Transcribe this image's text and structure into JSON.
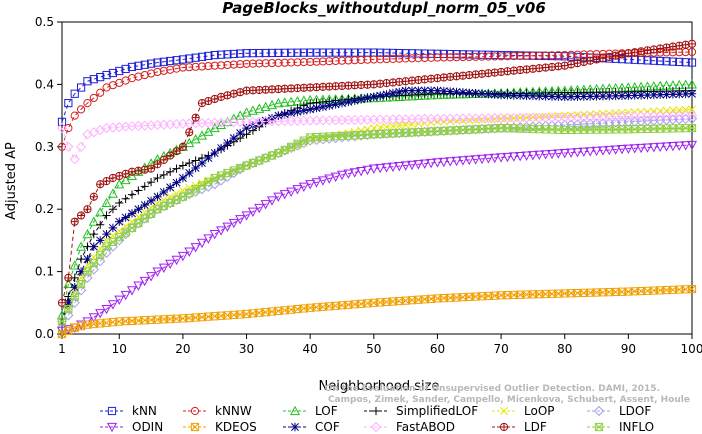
{
  "chart_data": {
    "type": "line",
    "title": "PageBlocks_withoutdupl_norm_05_v06",
    "xlabel": "Neighborhood size",
    "ylabel": "Adjusted AP",
    "xlim": [
      1,
      100
    ],
    "ylim": [
      0,
      0.5
    ],
    "xticks": [
      1,
      10,
      20,
      30,
      40,
      50,
      60,
      70,
      80,
      90,
      100
    ],
    "yticks": [
      0.0,
      0.1,
      0.2,
      0.3,
      0.4,
      0.5
    ],
    "grid": false,
    "legend_position": "bottom",
    "watermark": [
      "Campos, Zimek, Sander, Campello, Micenkova, Schubert, Assent, Houle",
      "On the Evaluation of Unsupervised Outlier Detection. DAMI, 2015."
    ],
    "series": [
      {
        "name": "kNN",
        "color": "#1f1fd6",
        "marker": "square",
        "dash": "4,3",
        "points": [
          [
            1,
            0.34
          ],
          [
            2,
            0.37
          ],
          [
            3,
            0.385
          ],
          [
            5,
            0.405
          ],
          [
            8,
            0.415
          ],
          [
            12,
            0.428
          ],
          [
            16,
            0.435
          ],
          [
            20,
            0.44
          ],
          [
            25,
            0.447
          ],
          [
            30,
            0.45
          ],
          [
            40,
            0.451
          ],
          [
            50,
            0.451
          ],
          [
            60,
            0.449
          ],
          [
            70,
            0.447
          ],
          [
            80,
            0.445
          ],
          [
            90,
            0.44
          ],
          [
            100,
            0.435
          ]
        ]
      },
      {
        "name": "kNNW",
        "color": "#d62020",
        "marker": "circle",
        "dash": "4,3",
        "points": [
          [
            1,
            0.3
          ],
          [
            2,
            0.33
          ],
          [
            3,
            0.35
          ],
          [
            5,
            0.37
          ],
          [
            8,
            0.395
          ],
          [
            12,
            0.41
          ],
          [
            16,
            0.42
          ],
          [
            20,
            0.427
          ],
          [
            25,
            0.43
          ],
          [
            30,
            0.433
          ],
          [
            40,
            0.436
          ],
          [
            50,
            0.44
          ],
          [
            60,
            0.443
          ],
          [
            70,
            0.445
          ],
          [
            80,
            0.447
          ],
          [
            90,
            0.45
          ],
          [
            100,
            0.452
          ]
        ]
      },
      {
        "name": "LOF",
        "color": "#22c022",
        "marker": "triangle",
        "dash": "4,3",
        "points": [
          [
            1,
            0.03
          ],
          [
            2,
            0.08
          ],
          [
            4,
            0.14
          ],
          [
            6,
            0.18
          ],
          [
            8,
            0.21
          ],
          [
            10,
            0.24
          ],
          [
            13,
            0.26
          ],
          [
            16,
            0.28
          ],
          [
            20,
            0.3
          ],
          [
            25,
            0.33
          ],
          [
            30,
            0.355
          ],
          [
            35,
            0.37
          ],
          [
            40,
            0.375
          ],
          [
            50,
            0.378
          ],
          [
            60,
            0.383
          ],
          [
            70,
            0.386
          ],
          [
            80,
            0.39
          ],
          [
            90,
            0.395
          ],
          [
            100,
            0.4
          ]
        ]
      },
      {
        "name": "SimplifiedLOF",
        "color": "#000000",
        "marker": "plus",
        "dash": "4,3",
        "points": [
          [
            1,
            0.02
          ],
          [
            2,
            0.06
          ],
          [
            4,
            0.12
          ],
          [
            6,
            0.16
          ],
          [
            8,
            0.19
          ],
          [
            10,
            0.21
          ],
          [
            13,
            0.23
          ],
          [
            16,
            0.25
          ],
          [
            20,
            0.27
          ],
          [
            25,
            0.29
          ],
          [
            30,
            0.32
          ],
          [
            35,
            0.35
          ],
          [
            40,
            0.37
          ],
          [
            50,
            0.38
          ],
          [
            60,
            0.385
          ],
          [
            70,
            0.385
          ],
          [
            80,
            0.387
          ],
          [
            90,
            0.388
          ],
          [
            100,
            0.39
          ]
        ]
      },
      {
        "name": "LoOP",
        "color": "#e6e600",
        "marker": "x",
        "dash": "4,3",
        "points": [
          [
            1,
            0.02
          ],
          [
            3,
            0.07
          ],
          [
            5,
            0.11
          ],
          [
            8,
            0.15
          ],
          [
            12,
            0.18
          ],
          [
            16,
            0.21
          ],
          [
            20,
            0.23
          ],
          [
            25,
            0.25
          ],
          [
            30,
            0.27
          ],
          [
            35,
            0.29
          ],
          [
            40,
            0.31
          ],
          [
            50,
            0.33
          ],
          [
            60,
            0.34
          ],
          [
            70,
            0.345
          ],
          [
            80,
            0.35
          ],
          [
            90,
            0.355
          ],
          [
            100,
            0.36
          ]
        ]
      },
      {
        "name": "LDOF",
        "color": "#a0a0e8",
        "marker": "diamond",
        "dash": "4,3",
        "points": [
          [
            1,
            0.01
          ],
          [
            3,
            0.05
          ],
          [
            5,
            0.09
          ],
          [
            8,
            0.13
          ],
          [
            12,
            0.17
          ],
          [
            16,
            0.2
          ],
          [
            20,
            0.22
          ],
          [
            25,
            0.24
          ],
          [
            30,
            0.27
          ],
          [
            35,
            0.29
          ],
          [
            40,
            0.31
          ],
          [
            50,
            0.32
          ],
          [
            60,
            0.325
          ],
          [
            70,
            0.33
          ],
          [
            80,
            0.335
          ],
          [
            90,
            0.34
          ],
          [
            100,
            0.345
          ]
        ]
      },
      {
        "name": "ODIN",
        "color": "#a020f0",
        "marker": "triangle-down",
        "dash": "4,3",
        "points": [
          [
            1,
            0.005
          ],
          [
            3,
            0.01
          ],
          [
            5,
            0.02
          ],
          [
            8,
            0.04
          ],
          [
            12,
            0.07
          ],
          [
            16,
            0.1
          ],
          [
            20,
            0.125
          ],
          [
            25,
            0.16
          ],
          [
            30,
            0.19
          ],
          [
            35,
            0.22
          ],
          [
            40,
            0.24
          ],
          [
            45,
            0.255
          ],
          [
            50,
            0.265
          ],
          [
            60,
            0.275
          ],
          [
            70,
            0.283
          ],
          [
            80,
            0.29
          ],
          [
            90,
            0.297
          ],
          [
            100,
            0.303
          ]
        ]
      },
      {
        "name": "KDEOS",
        "color": "#f0a000",
        "marker": "square-x",
        "dash": "4,3",
        "points": [
          [
            1,
            0.0
          ],
          [
            3,
            0.01
          ],
          [
            5,
            0.015
          ],
          [
            10,
            0.02
          ],
          [
            20,
            0.025
          ],
          [
            30,
            0.032
          ],
          [
            40,
            0.042
          ],
          [
            50,
            0.05
          ],
          [
            60,
            0.057
          ],
          [
            70,
            0.062
          ],
          [
            80,
            0.065
          ],
          [
            90,
            0.068
          ],
          [
            100,
            0.072
          ]
        ]
      },
      {
        "name": "COF",
        "color": "#000080",
        "marker": "star",
        "dash": "4,3",
        "points": [
          [
            1,
            0.02
          ],
          [
            2,
            0.05
          ],
          [
            4,
            0.1
          ],
          [
            6,
            0.14
          ],
          [
            8,
            0.16
          ],
          [
            10,
            0.18
          ],
          [
            13,
            0.2
          ],
          [
            16,
            0.22
          ],
          [
            20,
            0.25
          ],
          [
            25,
            0.29
          ],
          [
            30,
            0.33
          ],
          [
            35,
            0.35
          ],
          [
            40,
            0.36
          ],
          [
            45,
            0.37
          ],
          [
            50,
            0.38
          ],
          [
            55,
            0.39
          ],
          [
            60,
            0.39
          ],
          [
            70,
            0.383
          ],
          [
            80,
            0.38
          ],
          [
            90,
            0.382
          ],
          [
            100,
            0.385
          ]
        ]
      },
      {
        "name": "FastABOD",
        "color": "#ffb0ff",
        "marker": "diamond",
        "dash": "4,3",
        "points": [
          [
            1,
            0.33
          ],
          [
            2,
            0.3
          ],
          [
            3,
            0.28
          ],
          [
            4,
            0.3
          ],
          [
            5,
            0.32
          ],
          [
            8,
            0.33
          ],
          [
            12,
            0.333
          ],
          [
            16,
            0.335
          ],
          [
            20,
            0.337
          ],
          [
            30,
            0.34
          ],
          [
            40,
            0.342
          ],
          [
            60,
            0.345
          ],
          [
            80,
            0.347
          ],
          [
            100,
            0.35
          ]
        ]
      },
      {
        "name": "LDF",
        "color": "#a01010",
        "marker": "circle-plus",
        "dash": "4,3",
        "points": [
          [
            1,
            0.05
          ],
          [
            2,
            0.09
          ],
          [
            3,
            0.18
          ],
          [
            5,
            0.2
          ],
          [
            7,
            0.24
          ],
          [
            9,
            0.25
          ],
          [
            12,
            0.26
          ],
          [
            15,
            0.265
          ],
          [
            20,
            0.3
          ],
          [
            23,
            0.37
          ],
          [
            26,
            0.38
          ],
          [
            30,
            0.39
          ],
          [
            40,
            0.395
          ],
          [
            50,
            0.4
          ],
          [
            60,
            0.41
          ],
          [
            70,
            0.42
          ],
          [
            80,
            0.43
          ],
          [
            90,
            0.45
          ],
          [
            100,
            0.465
          ]
        ]
      },
      {
        "name": "INFLO",
        "color": "#90d040",
        "marker": "square-star",
        "dash": "4,3",
        "points": [
          [
            1,
            0.02
          ],
          [
            3,
            0.06
          ],
          [
            5,
            0.1
          ],
          [
            8,
            0.14
          ],
          [
            12,
            0.17
          ],
          [
            16,
            0.2
          ],
          [
            20,
            0.22
          ],
          [
            25,
            0.25
          ],
          [
            30,
            0.27
          ],
          [
            35,
            0.29
          ],
          [
            40,
            0.315
          ],
          [
            50,
            0.32
          ],
          [
            60,
            0.325
          ],
          [
            70,
            0.33
          ],
          [
            80,
            0.327
          ],
          [
            90,
            0.328
          ],
          [
            100,
            0.33
          ]
        ]
      }
    ],
    "legend_rows": [
      [
        "kNN",
        "kNNW",
        "LOF",
        "SimplifiedLOF",
        "LoOP",
        "LDOF"
      ],
      [
        "ODIN",
        "KDEOS",
        "COF",
        "FastABOD",
        "LDF",
        "INFLO"
      ]
    ]
  }
}
